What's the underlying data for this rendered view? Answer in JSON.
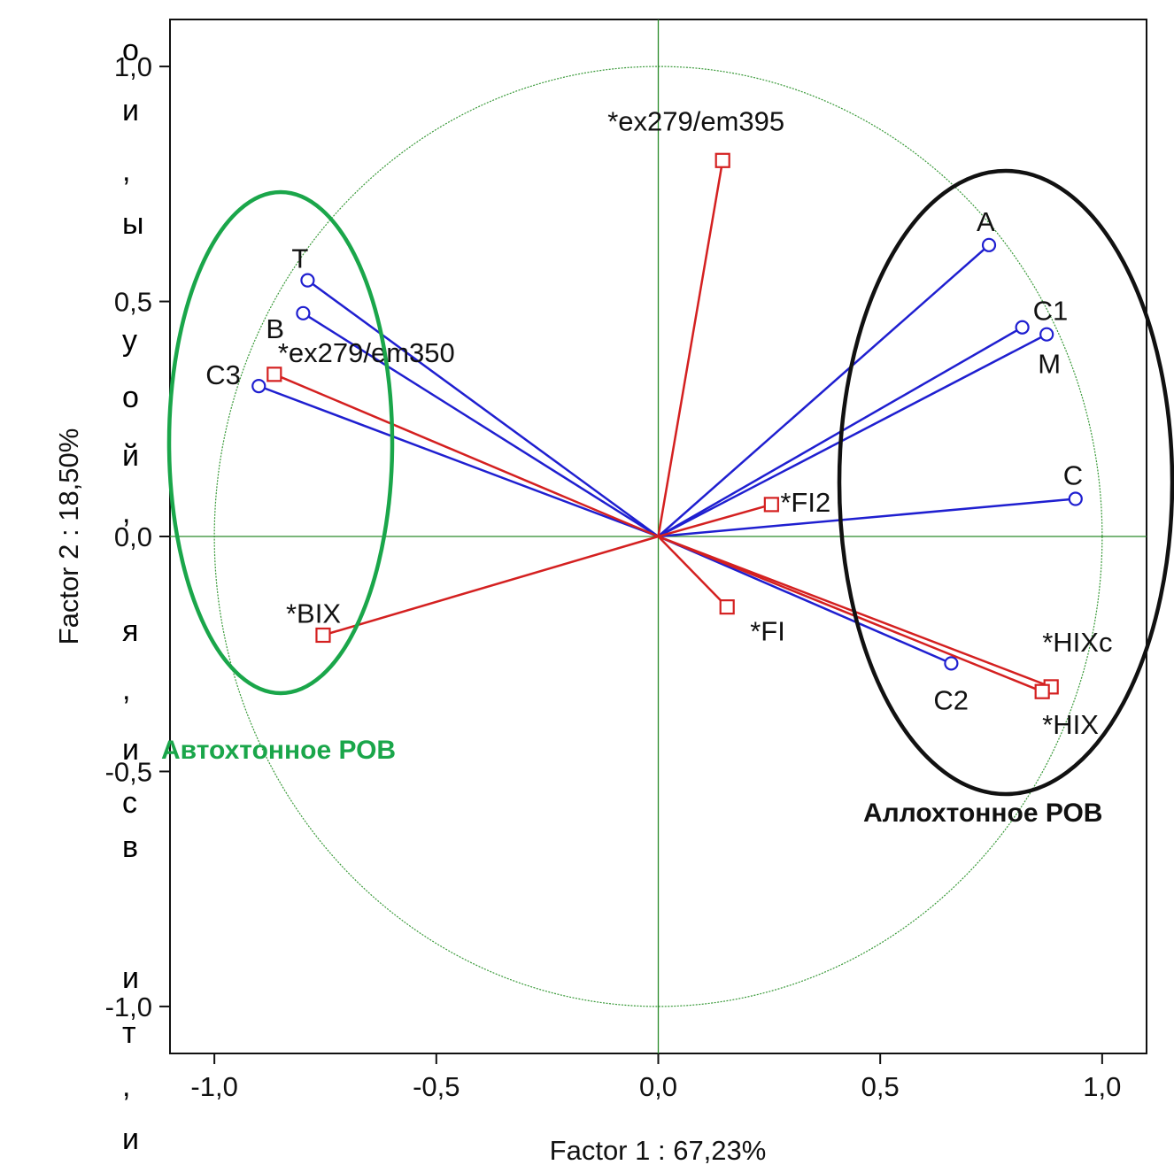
{
  "side_fragments": [
    "о",
    "и",
    ",",
    "ы",
    "у",
    "о",
    "й",
    ",",
    "я",
    ",",
    "и",
    "с",
    "в",
    "и",
    "т",
    ",",
    "и"
  ],
  "chart_data": {
    "type": "scatter",
    "subtype": "pca-loading-plot",
    "xlabel": "Factor 1 : 67,23%",
    "ylabel": "Factor 2 : 18,50%",
    "xlim": [
      -1.1,
      1.1
    ],
    "ylim": [
      -1.1,
      1.1
    ],
    "x_ticks": [
      {
        "value": -1.0,
        "label": "-1,0"
      },
      {
        "value": -0.5,
        "label": "-0,5"
      },
      {
        "value": 0.0,
        "label": "0,0"
      },
      {
        "value": 0.5,
        "label": "0,5"
      },
      {
        "value": 1.0,
        "label": "1,0"
      }
    ],
    "y_ticks": [
      {
        "value": 1.0,
        "label": "1,0"
      },
      {
        "value": 0.5,
        "label": "0,5"
      },
      {
        "value": 0.0,
        "label": "0,0"
      },
      {
        "value": -0.5,
        "label": "-0,5"
      },
      {
        "value": -1.0,
        "label": "-1,0"
      }
    ],
    "unit_circle": true,
    "series": [
      {
        "marker": "circle",
        "color": "#1f1fd0",
        "points": [
          {
            "label": "T",
            "x": -0.79,
            "y": 0.545
          },
          {
            "label": "B",
            "x": -0.8,
            "y": 0.475
          },
          {
            "label": "C3",
            "x": -0.9,
            "y": 0.32
          },
          {
            "label": "A",
            "x": 0.745,
            "y": 0.62
          },
          {
            "label": "C1",
            "x": 0.82,
            "y": 0.445
          },
          {
            "label": "M",
            "x": 0.875,
            "y": 0.43
          },
          {
            "label": "C",
            "x": 0.94,
            "y": 0.08
          },
          {
            "label": "C2",
            "x": 0.66,
            "y": -0.27
          }
        ]
      },
      {
        "marker": "square",
        "color": "#d42020",
        "points": [
          {
            "label": "*ex279/em395",
            "x": 0.145,
            "y": 0.8
          },
          {
            "label": "*ex279/em350",
            "x": -0.865,
            "y": 0.345
          },
          {
            "label": "*FI2",
            "x": 0.255,
            "y": 0.068
          },
          {
            "label": "*BIX",
            "x": -0.755,
            "y": -0.21
          },
          {
            "label": "*FI",
            "x": 0.155,
            "y": -0.15
          },
          {
            "label": "*HIXc",
            "x": 0.885,
            "y": -0.32
          },
          {
            "label": "*HIX",
            "x": 0.865,
            "y": -0.33
          }
        ]
      }
    ],
    "annotations": [
      {
        "text": "Автохтонное РОВ",
        "color": "#1aa64a"
      },
      {
        "text": "Аллохтонное РОВ",
        "color": "#111111"
      }
    ]
  }
}
